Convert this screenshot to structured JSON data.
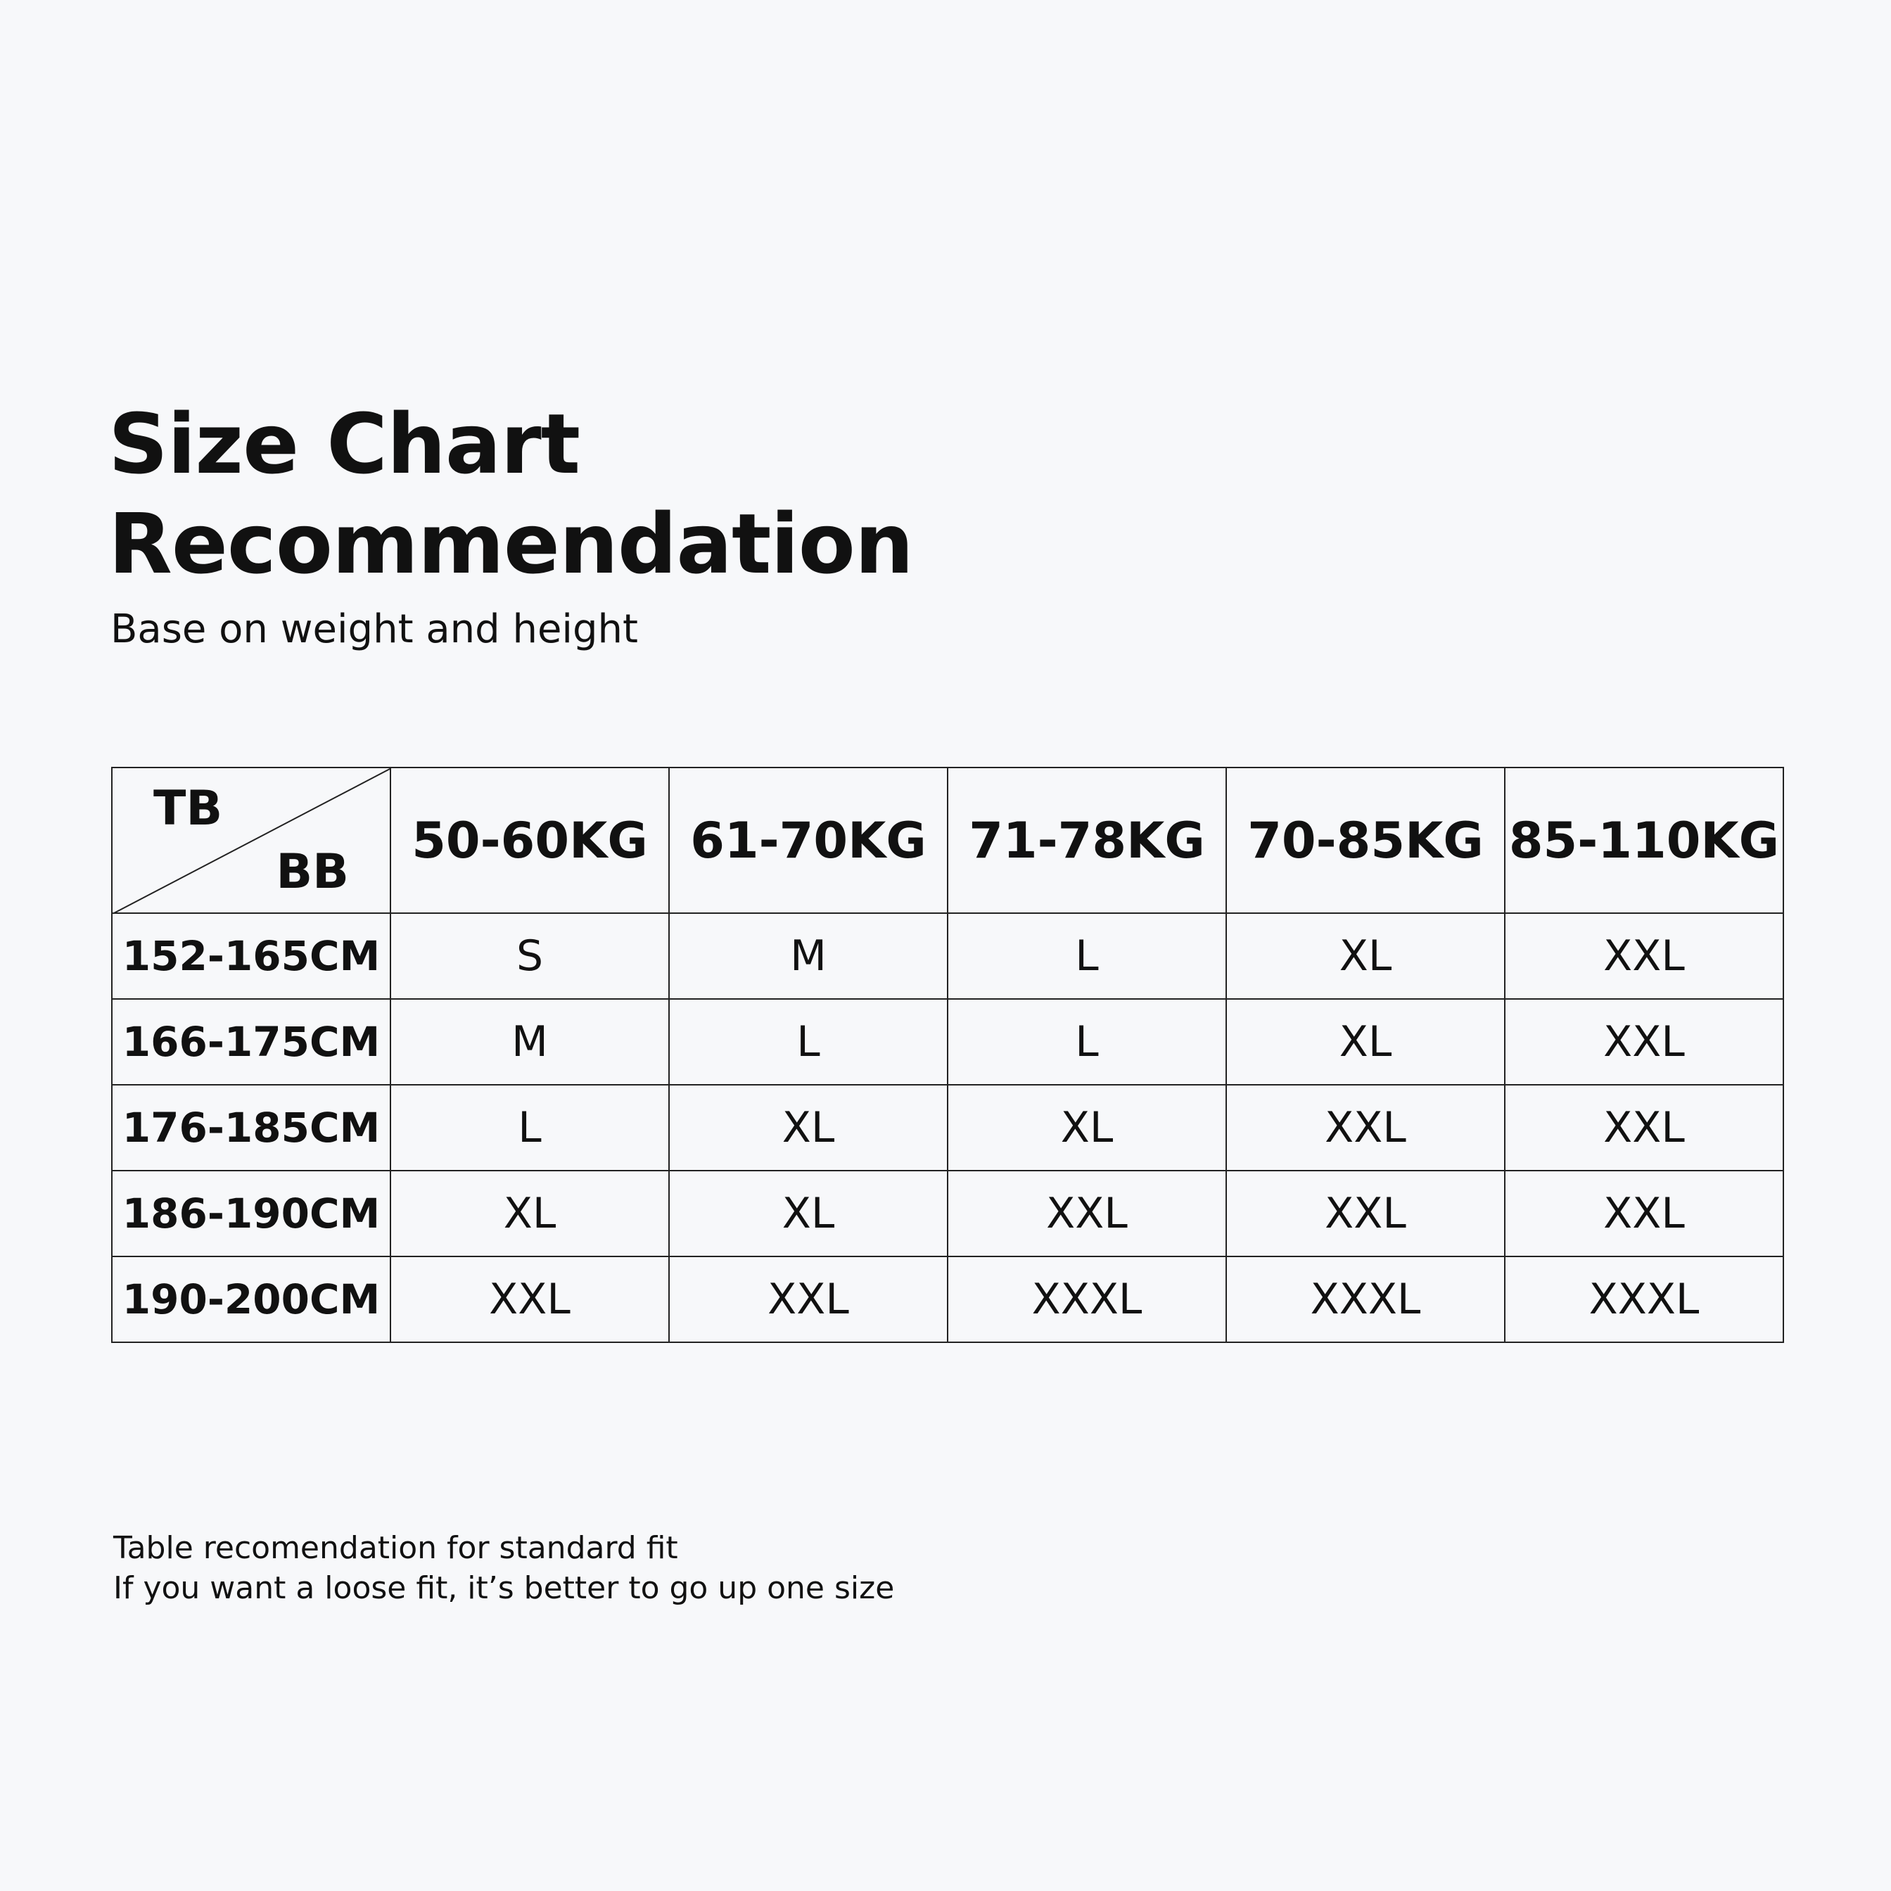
{
  "header": {
    "title_lines": [
      "Size Chart",
      "Recommendation"
    ],
    "subtitle": "Base on weight and height"
  },
  "table": {
    "corner_top": "TB",
    "corner_bottom": "BB",
    "columns": [
      "50-60KG",
      "61-70KG",
      "71-78KG",
      "70-85KG",
      "85-110KG"
    ],
    "rows": [
      {
        "label": "152-165CM",
        "cells": [
          "S",
          "M",
          "L",
          "XL",
          "XXL"
        ]
      },
      {
        "label": "166-175CM",
        "cells": [
          "M",
          "L",
          "L",
          "XL",
          "XXL"
        ]
      },
      {
        "label": "176-185CM",
        "cells": [
          "L",
          "XL",
          "XL",
          "XXL",
          "XXL"
        ]
      },
      {
        "label": "186-190CM",
        "cells": [
          "XL",
          "XL",
          "XXL",
          "XXL",
          "XXL"
        ]
      },
      {
        "label": "190-200CM",
        "cells": [
          "XXL",
          "XXL",
          "XXXL",
          "XXXL",
          "XXXL"
        ]
      }
    ]
  },
  "notes": [
    "Table recomendation for standard fit",
    "If you want a loose fit, it’s better to go up one size"
  ]
}
